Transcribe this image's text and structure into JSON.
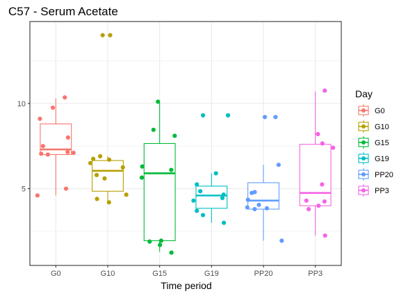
{
  "chart_data": {
    "type": "boxplot",
    "title": "C57 - Serum Acetate",
    "xlabel": "Time period",
    "ylabel": "",
    "ylim": [
      0.5,
      14.8
    ],
    "yticks": [
      5,
      10
    ],
    "grid": true,
    "legend": {
      "title": "Day",
      "position": "right"
    },
    "categories": [
      "G0",
      "G10",
      "G15",
      "G19",
      "PP20",
      "PP3"
    ],
    "series": [
      {
        "name": "G0",
        "color": "#F8766D",
        "box": {
          "lower_whisker": 4.6,
          "q1": 7.0,
          "median": 7.3,
          "q3": 8.8,
          "upper_whisker": 10.3
        },
        "points": [
          10.35,
          9.1,
          9.75,
          8.0,
          7.5,
          7.15,
          7.05,
          7.1,
          7.0,
          5.0,
          4.6
        ]
      },
      {
        "name": "G10",
        "color": "#B79F00",
        "box": {
          "lower_whisker": 4.2,
          "q1": 4.85,
          "median": 6.05,
          "q3": 6.65,
          "upper_whisker": 6.9
        },
        "points": [
          14.0,
          14.0,
          6.9,
          6.7,
          6.75,
          6.5,
          6.25,
          5.8,
          5.6,
          4.65,
          4.4,
          4.2
        ]
      },
      {
        "name": "G15",
        "color": "#00BA38",
        "box": {
          "lower_whisker": 1.3,
          "q1": 1.95,
          "median": 5.9,
          "q3": 7.65,
          "upper_whisker": 10.05
        },
        "points": [
          10.1,
          8.45,
          8.1,
          6.3,
          6.1,
          5.65,
          1.95,
          1.9,
          1.7,
          1.25
        ]
      },
      {
        "name": "G19",
        "color": "#00BFC4",
        "box": {
          "lower_whisker": 3.0,
          "q1": 3.85,
          "median": 4.6,
          "q3": 5.15,
          "upper_whisker": 5.9
        },
        "points": [
          9.3,
          9.3,
          5.9,
          5.25,
          4.85,
          4.65,
          4.45,
          4.3,
          3.7,
          3.45,
          3.0
        ]
      },
      {
        "name": "PP20",
        "color": "#619CFF",
        "box": {
          "lower_whisker": 1.95,
          "q1": 3.8,
          "median": 4.3,
          "q3": 5.35,
          "upper_whisker": 6.4
        },
        "points": [
          9.2,
          9.2,
          6.4,
          4.8,
          4.75,
          4.35,
          4.05,
          3.9,
          3.85,
          3.8,
          1.95
        ]
      },
      {
        "name": "PP3",
        "color": "#F564E3",
        "box": {
          "lower_whisker": 2.25,
          "q1": 4.0,
          "median": 4.75,
          "q3": 7.6,
          "upper_whisker": 10.7
        },
        "points": [
          10.75,
          8.2,
          7.65,
          7.4,
          5.25,
          4.3,
          4.25,
          4.0,
          3.8,
          2.25
        ]
      }
    ]
  }
}
